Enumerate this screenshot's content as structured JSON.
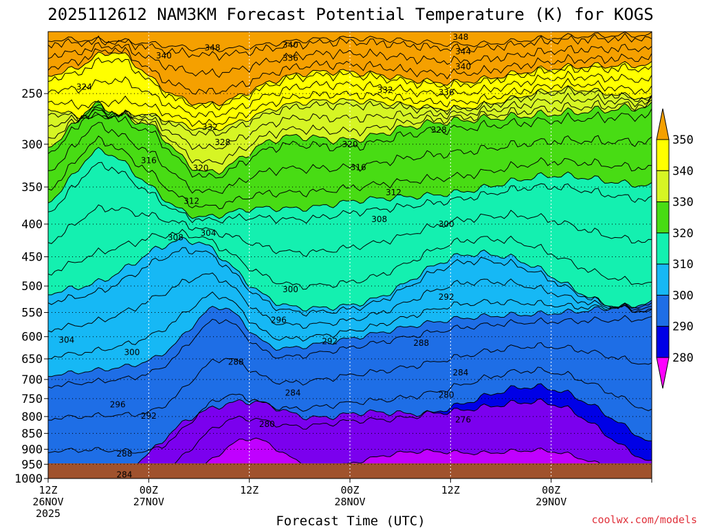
{
  "chart_data": {
    "type": "contour",
    "title": "2025112612 NAM3KM Forecast Potential Temperature (K) for KOGS",
    "xlabel": "Forecast Time (UTC)",
    "credit": "coolwx.com/models",
    "y_axis": {
      "scale": "pressure",
      "ticks": [
        "250",
        "300",
        "350",
        "400",
        "450",
        "500",
        "550",
        "600",
        "650",
        "700",
        "750",
        "800",
        "850",
        "900",
        "950",
        "1000"
      ],
      "range_hpa": [
        200,
        1000
      ],
      "grid": true
    },
    "x_axis": {
      "range_hours": [
        0,
        72
      ],
      "ticks": [
        {
          "hour": 0,
          "lines": [
            "12Z",
            "26NOV",
            "2025"
          ]
        },
        {
          "hour": 12,
          "lines": [
            "00Z",
            "27NOV"
          ]
        },
        {
          "hour": 24,
          "lines": [
            "12Z"
          ]
        },
        {
          "hour": 36,
          "lines": [
            "00Z",
            "28NOV"
          ]
        },
        {
          "hour": 48,
          "lines": [
            "12Z"
          ]
        },
        {
          "hour": 60,
          "lines": [
            "00Z",
            "29NOV"
          ]
        }
      ],
      "grid": true
    },
    "colorbar": {
      "ticks": [
        "280",
        "290",
        "300",
        "310",
        "320",
        "330",
        "340",
        "350"
      ],
      "levels": [
        280,
        290,
        300,
        310,
        320,
        330,
        340,
        350
      ],
      "colors": [
        "#ff00ff",
        "#c000ff",
        "#7b00ee",
        "#0000e6",
        "#1e6ee6",
        "#16b8f5",
        "#14f0b0",
        "#48dc14",
        "#d6f524",
        "#ffff00",
        "#f5a000"
      ]
    },
    "contour_interval": 4,
    "contour_labels": [
      {
        "hour": 4.3,
        "p": 244,
        "label": "324"
      },
      {
        "hour": 13.8,
        "p": 218,
        "label": "340"
      },
      {
        "hour": 19.6,
        "p": 212,
        "label": "348"
      },
      {
        "hour": 28.9,
        "p": 210,
        "label": "340"
      },
      {
        "hour": 28.9,
        "p": 220,
        "label": "336"
      },
      {
        "hour": 40.2,
        "p": 247,
        "label": "332"
      },
      {
        "hour": 49.2,
        "p": 204,
        "label": "348"
      },
      {
        "hour": 49.5,
        "p": 215,
        "label": "344"
      },
      {
        "hour": 49.5,
        "p": 227,
        "label": "340"
      },
      {
        "hour": 47.5,
        "p": 249,
        "label": "336"
      },
      {
        "hour": 19.3,
        "p": 282,
        "label": "332"
      },
      {
        "hour": 20.8,
        "p": 298,
        "label": "328"
      },
      {
        "hour": 46.6,
        "p": 285,
        "label": "328"
      },
      {
        "hour": 36,
        "p": 300,
        "label": "320"
      },
      {
        "hour": 12,
        "p": 318,
        "label": "316"
      },
      {
        "hour": 18.2,
        "p": 327,
        "label": "320"
      },
      {
        "hour": 37,
        "p": 326,
        "label": "316"
      },
      {
        "hour": 17.1,
        "p": 368,
        "label": "312"
      },
      {
        "hour": 41.2,
        "p": 357,
        "label": "312"
      },
      {
        "hour": 39.5,
        "p": 393,
        "label": "308"
      },
      {
        "hour": 15.2,
        "p": 420,
        "label": "308"
      },
      {
        "hour": 19.1,
        "p": 413,
        "label": "304"
      },
      {
        "hour": 47.5,
        "p": 400,
        "label": "300"
      },
      {
        "hour": 28.9,
        "p": 506,
        "label": "300"
      },
      {
        "hour": 27.5,
        "p": 565,
        "label": "296"
      },
      {
        "hour": 47.5,
        "p": 520,
        "label": "292"
      },
      {
        "hour": 33.6,
        "p": 610,
        "label": "292"
      },
      {
        "hour": 2.2,
        "p": 607,
        "label": "304"
      },
      {
        "hour": 10,
        "p": 635,
        "label": "300"
      },
      {
        "hour": 44.5,
        "p": 614,
        "label": "288"
      },
      {
        "hour": 22.4,
        "p": 657,
        "label": "288"
      },
      {
        "hour": 49.2,
        "p": 683,
        "label": "284"
      },
      {
        "hour": 29.2,
        "p": 735,
        "label": "284"
      },
      {
        "hour": 47.5,
        "p": 740,
        "label": "280"
      },
      {
        "hour": 8.3,
        "p": 766,
        "label": "296"
      },
      {
        "hour": 12,
        "p": 798,
        "label": "292"
      },
      {
        "hour": 49.5,
        "p": 809,
        "label": "276"
      },
      {
        "hour": 26.1,
        "p": 822,
        "label": "280"
      },
      {
        "hour": 9.1,
        "p": 915,
        "label": "288"
      },
      {
        "hour": 9.1,
        "p": 987,
        "label": "284"
      }
    ]
  }
}
